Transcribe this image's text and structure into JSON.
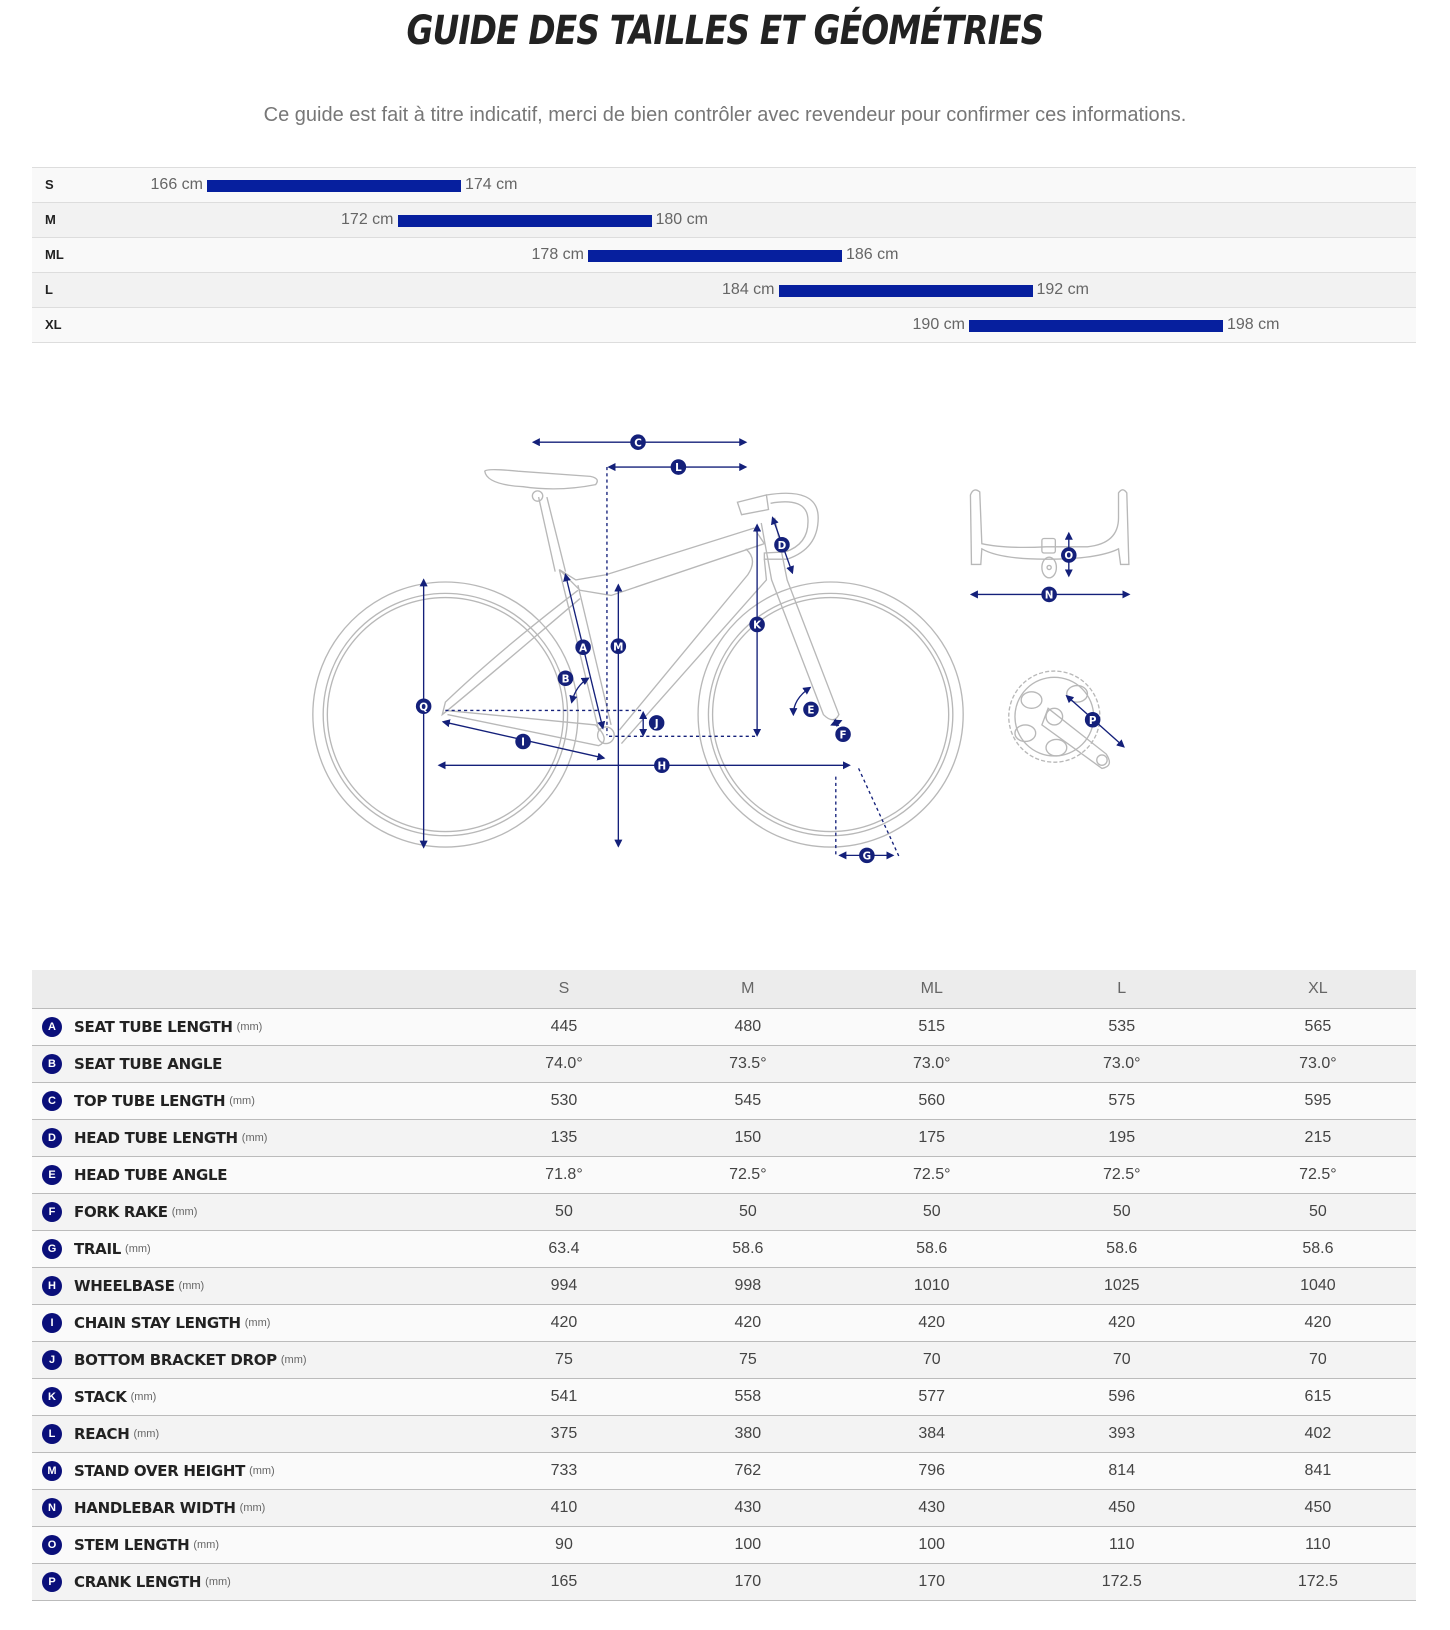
{
  "title": "GUIDE DES TAILLES ET GÉOMÉTRIES",
  "subtitle": "Ce guide est fait à titre indicatif, merci de bien contrôler avec revendeur pour confirmer ces informations.",
  "colors": {
    "accent": "#061f9e",
    "diagram_navy": "#14207a",
    "badge": "#0a0f7a"
  },
  "size_guide": {
    "unit": "cm",
    "rows": [
      {
        "size": "S",
        "min": 166,
        "max": 174,
        "min_label": "166 cm",
        "max_label": "174 cm"
      },
      {
        "size": "M",
        "min": 172,
        "max": 180,
        "min_label": "172 cm",
        "max_label": "180 cm"
      },
      {
        "size": "ML",
        "min": 178,
        "max": 186,
        "min_label": "178 cm",
        "max_label": "186 cm"
      },
      {
        "size": "L",
        "min": 184,
        "max": 192,
        "min_label": "184 cm",
        "max_label": "192 cm"
      },
      {
        "size": "XL",
        "min": 190,
        "max": 198,
        "min_label": "190 cm",
        "max_label": "198 cm"
      }
    ]
  },
  "diagram": {
    "labels": [
      "A",
      "B",
      "C",
      "D",
      "E",
      "F",
      "G",
      "H",
      "I",
      "J",
      "K",
      "L",
      "M",
      "N",
      "O",
      "P",
      "Q"
    ]
  },
  "geometry": {
    "columns": [
      "S",
      "M",
      "ML",
      "L",
      "XL"
    ],
    "rows": [
      {
        "key": "A",
        "name": "SEAT TUBE LENGTH",
        "unit": "(mm)",
        "values": [
          "445",
          "480",
          "515",
          "535",
          "565"
        ]
      },
      {
        "key": "B",
        "name": "SEAT TUBE ANGLE",
        "unit": "",
        "values": [
          "74.0°",
          "73.5°",
          "73.0°",
          "73.0°",
          "73.0°"
        ]
      },
      {
        "key": "C",
        "name": "TOP TUBE LENGTH",
        "unit": "(mm)",
        "values": [
          "530",
          "545",
          "560",
          "575",
          "595"
        ]
      },
      {
        "key": "D",
        "name": "HEAD TUBE LENGTH",
        "unit": "(mm)",
        "values": [
          "135",
          "150",
          "175",
          "195",
          "215"
        ]
      },
      {
        "key": "E",
        "name": "HEAD TUBE ANGLE",
        "unit": "",
        "values": [
          "71.8°",
          "72.5°",
          "72.5°",
          "72.5°",
          "72.5°"
        ]
      },
      {
        "key": "F",
        "name": "FORK RAKE",
        "unit": "(mm)",
        "values": [
          "50",
          "50",
          "50",
          "50",
          "50"
        ]
      },
      {
        "key": "G",
        "name": "TRAIL",
        "unit": "(mm)",
        "values": [
          "63.4",
          "58.6",
          "58.6",
          "58.6",
          "58.6"
        ]
      },
      {
        "key": "H",
        "name": "WHEELBASE",
        "unit": "(mm)",
        "values": [
          "994",
          "998",
          "1010",
          "1025",
          "1040"
        ]
      },
      {
        "key": "I",
        "name": "CHAIN STAY LENGTH",
        "unit": "(mm)",
        "values": [
          "420",
          "420",
          "420",
          "420",
          "420"
        ]
      },
      {
        "key": "J",
        "name": "BOTTOM BRACKET DROP",
        "unit": "(mm)",
        "values": [
          "75",
          "75",
          "70",
          "70",
          "70"
        ]
      },
      {
        "key": "K",
        "name": "STACK",
        "unit": "(mm)",
        "values": [
          "541",
          "558",
          "577",
          "596",
          "615"
        ]
      },
      {
        "key": "L",
        "name": "REACH",
        "unit": "(mm)",
        "values": [
          "375",
          "380",
          "384",
          "393",
          "402"
        ]
      },
      {
        "key": "M",
        "name": "STAND OVER HEIGHT",
        "unit": "(mm)",
        "values": [
          "733",
          "762",
          "796",
          "814",
          "841"
        ]
      },
      {
        "key": "N",
        "name": "HANDLEBAR WIDTH",
        "unit": "(mm)",
        "values": [
          "410",
          "430",
          "430",
          "450",
          "450"
        ]
      },
      {
        "key": "O",
        "name": "STEM LENGTH",
        "unit": "(mm)",
        "values": [
          "90",
          "100",
          "100",
          "110",
          "110"
        ]
      },
      {
        "key": "P",
        "name": "CRANK LENGTH",
        "unit": "(mm)",
        "values": [
          "165",
          "170",
          "170",
          "172.5",
          "172.5"
        ]
      }
    ]
  }
}
